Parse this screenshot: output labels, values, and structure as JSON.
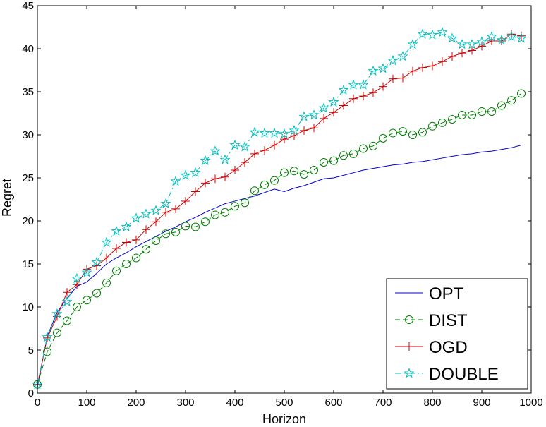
{
  "chart_data": {
    "type": "line",
    "title": "",
    "xlabel": "Horizon",
    "ylabel": "Regret",
    "xlim": [
      0,
      1000
    ],
    "ylim": [
      0,
      45
    ],
    "xticks": [
      0,
      100,
      200,
      300,
      400,
      500,
      600,
      700,
      800,
      900,
      1000
    ],
    "yticks": [
      0,
      5,
      10,
      15,
      20,
      25,
      30,
      35,
      40,
      45
    ],
    "grid": false,
    "legend_position": "bottom-right",
    "series": [
      {
        "name": "OPT",
        "color": "#0000cc",
        "marker": "none",
        "line": "solid",
        "x": [
          0,
          20,
          40,
          60,
          80,
          100,
          120,
          140,
          160,
          180,
          200,
          220,
          240,
          260,
          280,
          300,
          320,
          340,
          360,
          380,
          400,
          420,
          440,
          460,
          480,
          500,
          520,
          540,
          560,
          580,
          600,
          620,
          640,
          660,
          680,
          700,
          720,
          740,
          760,
          780,
          800,
          820,
          840,
          860,
          880,
          900,
          920,
          940,
          960,
          980
        ],
        "y": [
          0.7,
          6.6,
          9.4,
          11.0,
          12.4,
          12.9,
          13.9,
          15.0,
          15.7,
          16.3,
          17.0,
          17.6,
          18.2,
          18.8,
          19.3,
          19.9,
          20.4,
          21.0,
          21.5,
          22.0,
          22.3,
          22.6,
          22.9,
          23.3,
          23.7,
          23.4,
          23.8,
          24.1,
          24.5,
          24.9,
          25.0,
          25.3,
          25.6,
          25.9,
          26.1,
          26.3,
          26.5,
          26.6,
          26.8,
          26.9,
          27.1,
          27.3,
          27.5,
          27.7,
          27.8,
          28.0,
          28.1,
          28.3,
          28.5,
          28.8
        ]
      },
      {
        "name": "DIST",
        "color": "#008000",
        "marker": "circle",
        "line": "dashed",
        "x": [
          0,
          20,
          40,
          60,
          80,
          100,
          120,
          140,
          160,
          180,
          200,
          220,
          240,
          260,
          280,
          300,
          320,
          340,
          360,
          380,
          400,
          420,
          440,
          460,
          480,
          500,
          520,
          540,
          560,
          580,
          600,
          620,
          640,
          660,
          680,
          700,
          720,
          740,
          760,
          780,
          800,
          820,
          840,
          860,
          880,
          900,
          920,
          940,
          960,
          980
        ],
        "y": [
          1.0,
          4.8,
          7.0,
          8.4,
          10.0,
          10.8,
          11.6,
          12.8,
          14.2,
          15.0,
          15.7,
          16.7,
          17.7,
          18.5,
          18.7,
          19.4,
          19.3,
          19.9,
          20.7,
          21.0,
          21.7,
          22.1,
          23.5,
          24.2,
          24.7,
          25.6,
          25.8,
          25.4,
          25.9,
          26.8,
          27.0,
          27.6,
          27.8,
          28.4,
          28.7,
          29.6,
          30.2,
          30.4,
          30.0,
          30.3,
          31.0,
          31.4,
          31.8,
          32.3,
          32.3,
          32.7,
          32.7,
          33.4,
          34.0,
          34.8
        ]
      },
      {
        "name": "OGD",
        "color": "#cc0000",
        "marker": "plus",
        "line": "solid",
        "x": [
          0,
          20,
          40,
          60,
          80,
          100,
          120,
          140,
          160,
          180,
          200,
          220,
          240,
          260,
          280,
          300,
          320,
          340,
          360,
          380,
          400,
          420,
          440,
          460,
          480,
          500,
          520,
          540,
          560,
          580,
          600,
          620,
          640,
          660,
          680,
          700,
          720,
          740,
          760,
          780,
          800,
          820,
          840,
          860,
          880,
          900,
          920,
          940,
          960,
          980
        ],
        "y": [
          1.0,
          6.4,
          8.9,
          11.7,
          12.6,
          14.4,
          14.8,
          15.7,
          16.8,
          17.5,
          17.8,
          19.0,
          19.9,
          21.0,
          21.4,
          22.3,
          23.4,
          24.4,
          24.9,
          25.1,
          25.9,
          26.8,
          27.8,
          28.2,
          28.8,
          29.5,
          29.9,
          30.5,
          30.8,
          31.9,
          32.6,
          33.4,
          34.2,
          34.5,
          34.9,
          35.6,
          36.5,
          36.6,
          37.4,
          37.8,
          38.0,
          38.5,
          39.1,
          39.5,
          39.8,
          40.3,
          40.9,
          40.9,
          41.7,
          41.5
        ]
      },
      {
        "name": "DOUBLE",
        "color": "#00bfbf",
        "marker": "star",
        "line": "dashdot",
        "x": [
          0,
          20,
          40,
          60,
          80,
          100,
          120,
          140,
          160,
          180,
          200,
          220,
          240,
          260,
          280,
          300,
          320,
          340,
          360,
          380,
          400,
          420,
          440,
          460,
          480,
          500,
          520,
          540,
          560,
          580,
          600,
          620,
          640,
          660,
          680,
          700,
          720,
          740,
          760,
          780,
          800,
          820,
          840,
          860,
          880,
          900,
          920,
          940,
          960,
          980
        ],
        "y": [
          1.0,
          6.5,
          9.2,
          10.6,
          13.3,
          14.0,
          15.2,
          17.5,
          18.8,
          19.3,
          20.3,
          20.8,
          21.2,
          22.0,
          24.6,
          25.3,
          25.6,
          27.0,
          28.1,
          27.1,
          28.8,
          28.6,
          30.3,
          30.2,
          30.2,
          30.1,
          30.5,
          32.1,
          32.3,
          33.1,
          33.8,
          35.2,
          35.8,
          35.8,
          37.4,
          37.7,
          38.6,
          39.1,
          40.5,
          41.7,
          41.6,
          41.9,
          41.2,
          40.5,
          40.5,
          40.8,
          41.4,
          41.0,
          41.4,
          41.2
        ]
      }
    ]
  }
}
